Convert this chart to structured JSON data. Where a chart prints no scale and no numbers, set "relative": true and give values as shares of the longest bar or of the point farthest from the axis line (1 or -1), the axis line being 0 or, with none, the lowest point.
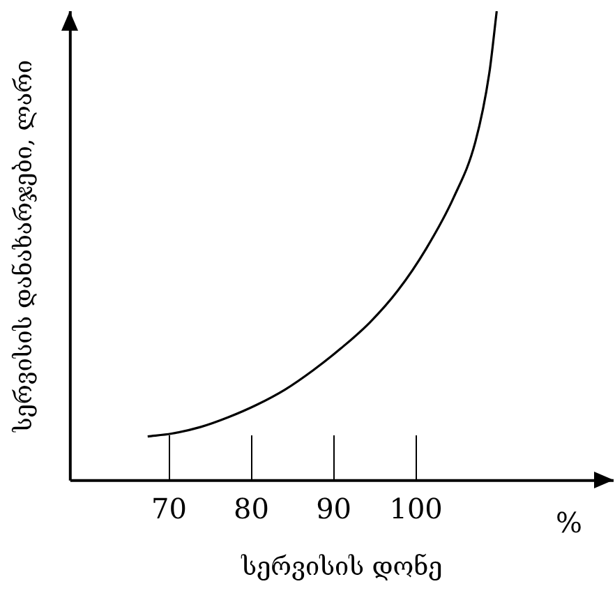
{
  "chart_data": {
    "type": "line",
    "relative": true,
    "xlabel": "სერვისის დონე",
    "ylabel": "სერვისის დანახარჯები, ლარი",
    "annotations": [
      "%"
    ],
    "xlim": [
      58,
      124
    ],
    "xticks": [
      70,
      80,
      90,
      100
    ],
    "grid": false,
    "legend": false,
    "marker": "none",
    "line_style": "solid",
    "series": [
      {
        "color": "#000000",
        "x": [
          67.4,
          70.3,
          73.8,
          77.2,
          80.6,
          84.1,
          87.5,
          90.9,
          94.4,
          97.8,
          101.2,
          104.6,
          107.2,
          108.9,
          109.8
        ],
        "values": [
          0.094,
          0.1,
          0.114,
          0.135,
          0.161,
          0.194,
          0.235,
          0.282,
          0.337,
          0.405,
          0.493,
          0.604,
          0.721,
          0.868,
          1
        ]
      }
    ]
  }
}
